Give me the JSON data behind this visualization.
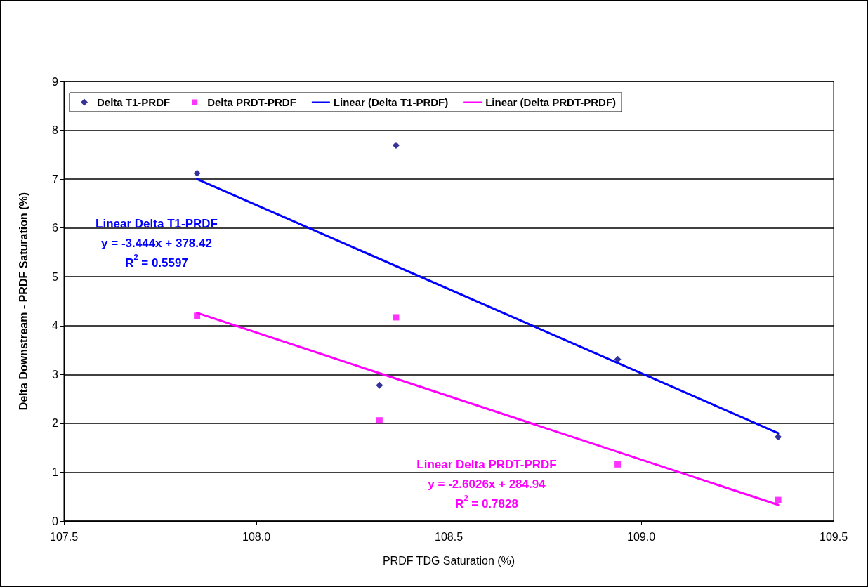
{
  "chart_data": {
    "type": "scatter",
    "xlabel": "PRDF TDG Saturation (%)",
    "ylabel": "Delta Downstream - PRDF Saturation (%)",
    "xlim": [
      107.5,
      109.5
    ],
    "xticks": [
      {
        "value": 107.5,
        "label": "107.5"
      },
      {
        "value": 108,
        "label": "108.0"
      },
      {
        "value": 108.5,
        "label": "108.5"
      },
      {
        "value": 109,
        "label": "109.0"
      },
      {
        "value": 109.5,
        "label": "109.5"
      }
    ],
    "ylim": [
      0,
      9
    ],
    "yticks": [
      0,
      1,
      2,
      3,
      4,
      5,
      6,
      7,
      8,
      9
    ],
    "grid": "y",
    "legend": "top",
    "series": [
      {
        "name": "Delta T1-PRDF",
        "marker": "diamond",
        "color": "#000080",
        "x": [
          107.846,
          108.363,
          108.32,
          108.939,
          109.356
        ],
        "values": [
          7.12,
          7.69,
          2.78,
          3.31,
          1.72
        ]
      },
      {
        "name": "Delta PRDT-PRDF",
        "marker": "square",
        "color": "#ff00ff",
        "x": [
          107.846,
          108.363,
          108.32,
          108.939,
          109.356
        ],
        "values": [
          4.2,
          4.17,
          2.06,
          1.16,
          0.43
        ]
      },
      {
        "name": "Linear (Delta T1-PRDF)",
        "type": "line",
        "marker": "none",
        "color": "#0000ff",
        "x": [
          107.846,
          109.356
        ],
        "values": [
          7.0,
          1.8
        ]
      },
      {
        "name": "Linear (Delta PRDT-PRDF)",
        "type": "line",
        "marker": "none",
        "color": "#ff00ff",
        "x": [
          107.846,
          109.356
        ],
        "values": [
          4.26,
          0.33
        ]
      }
    ],
    "annotations": [
      "Linear Delta T1-PRDF\ny = -3.444x + 378.42\nR$^{2}$ = 0.5597",
      "Linear Delta PRDT-PRDF\ny = -2.6026x + 284.94\nR$^{2}$ = 0.7828"
    ]
  }
}
